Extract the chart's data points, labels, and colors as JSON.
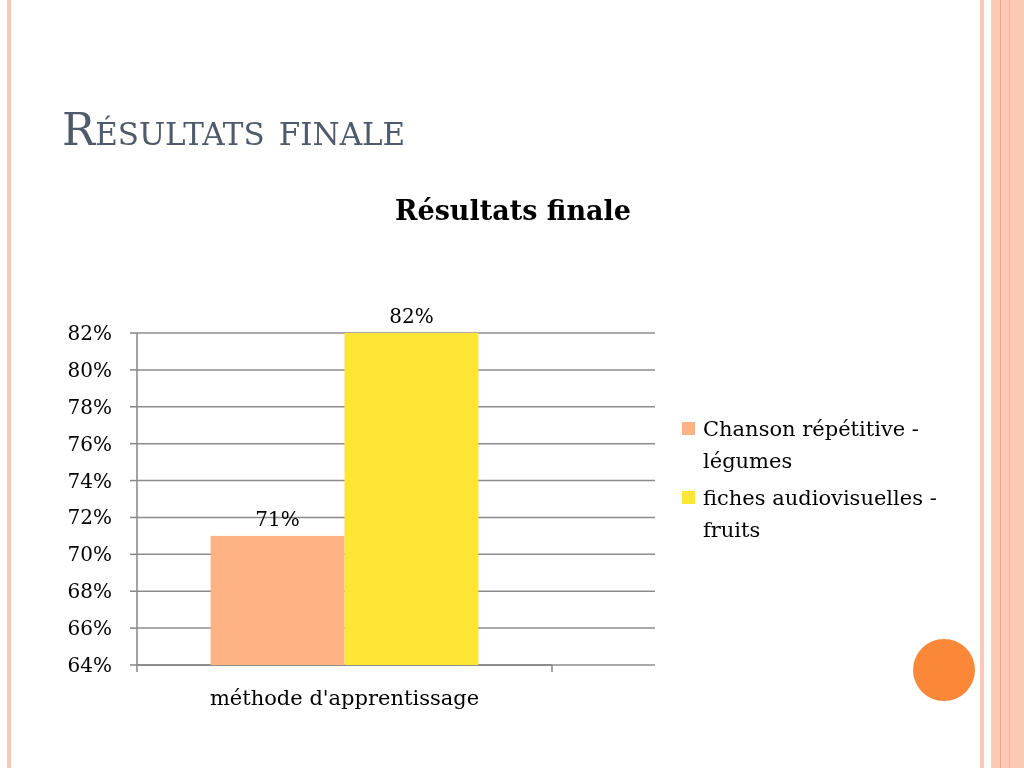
{
  "chart_data": {
    "type": "bar",
    "title": "Résultats finale",
    "subtitle": "Résultats finale",
    "categories": [
      "méthode d'apprentissage"
    ],
    "series": [
      {
        "name": "Chanson répétitive - légumes",
        "color": "#ffb385",
        "values": [
          71
        ],
        "value_labels": [
          "71%"
        ]
      },
      {
        "name": "fiches audiovisuelles - fruits",
        "color": "#ffe636",
        "values": [
          82
        ],
        "value_labels": [
          "82%"
        ]
      }
    ],
    "ylim": [
      64,
      82
    ],
    "yticks": [
      {
        "value": 64,
        "label": "64%"
      },
      {
        "value": 66,
        "label": "66%"
      },
      {
        "value": 68,
        "label": "68%"
      },
      {
        "value": 70,
        "label": "70%"
      },
      {
        "value": 72,
        "label": "72%"
      },
      {
        "value": 74,
        "label": "74%"
      },
      {
        "value": 76,
        "label": "76%"
      },
      {
        "value": 78,
        "label": "78%"
      },
      {
        "value": 80,
        "label": "80%"
      },
      {
        "value": 82,
        "label": "82%"
      }
    ],
    "grid": "y",
    "legend": "right"
  }
}
